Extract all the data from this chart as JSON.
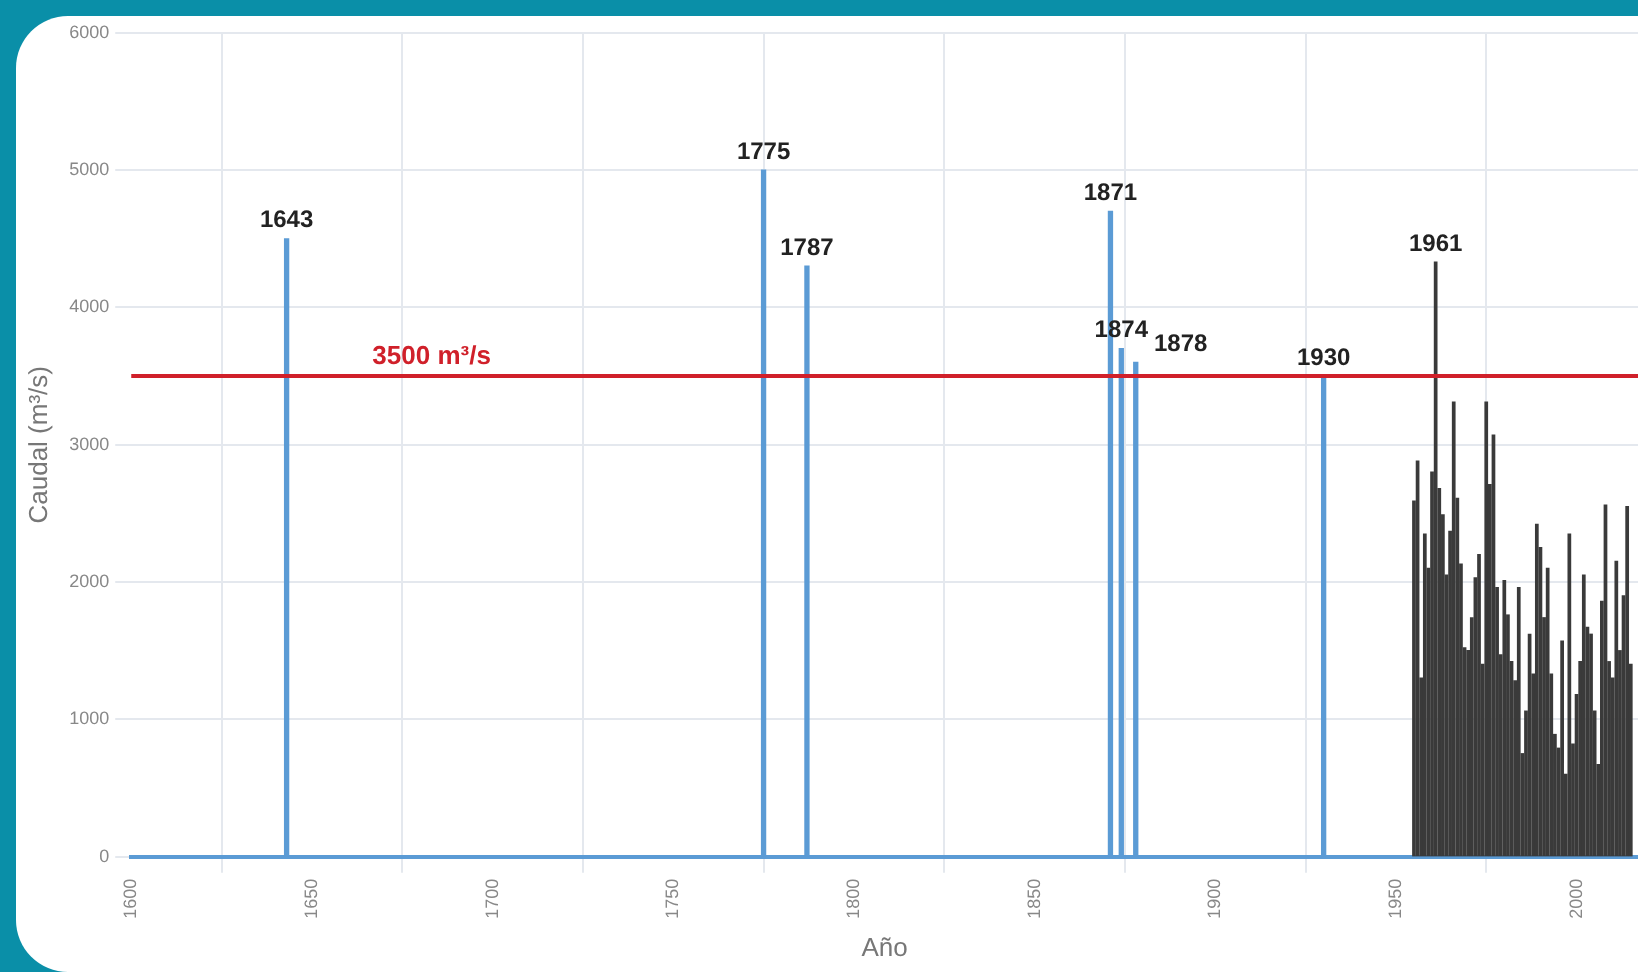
{
  "chart_data": {
    "type": "bar",
    "xlabel": "Año",
    "ylabel": "Caudal (m³/s)",
    "xlim": [
      1600,
      2017
    ],
    "xticks": [
      1600,
      1650,
      1700,
      1750,
      1800,
      1850,
      1900,
      1950,
      2000
    ],
    "ylim": [
      0,
      6000
    ],
    "yticks": [
      0,
      1000,
      2000,
      3000,
      4000,
      5000,
      6000
    ],
    "grid": true,
    "legend": false,
    "series": [
      {
        "color": "#5b9bd5",
        "x": [
          1643,
          1775,
          1787,
          1871,
          1874,
          1878,
          1930
        ],
        "values": [
          4500,
          5000,
          4300,
          4700,
          3700,
          3600,
          3500
        ]
      },
      {
        "color": "#3a3a3a",
        "x": [
          1955,
          1956,
          1957,
          1958,
          1959,
          1960,
          1961,
          1962,
          1963,
          1964,
          1965,
          1966,
          1967,
          1968,
          1969,
          1970,
          1971,
          1972,
          1973,
          1974,
          1975,
          1976,
          1977,
          1978,
          1979,
          1980,
          1981,
          1982,
          1983,
          1984,
          1985,
          1986,
          1987,
          1988,
          1989,
          1990,
          1991,
          1992,
          1993,
          1994,
          1995,
          1996,
          1997,
          1998,
          1999,
          2000,
          2001,
          2002,
          2003,
          2004,
          2005,
          2006,
          2007,
          2008,
          2009,
          2010,
          2011,
          2012,
          2013,
          2014,
          2015
        ],
        "values": [
          2590,
          2880,
          1300,
          2350,
          2100,
          2800,
          4330,
          2680,
          2490,
          2050,
          2370,
          3310,
          2610,
          2130,
          1520,
          1500,
          1740,
          2030,
          2200,
          1400,
          3310,
          2710,
          3070,
          1960,
          1470,
          2010,
          1760,
          1420,
          1280,
          1960,
          750,
          1060,
          1620,
          1330,
          2420,
          2250,
          1740,
          2100,
          1330,
          890,
          790,
          1570,
          600,
          2350,
          820,
          1180,
          1420,
          2050,
          1670,
          1620,
          1060,
          670,
          1860,
          2560,
          1420,
          1300,
          2150,
          1500,
          1900,
          2550,
          1400
        ]
      }
    ],
    "annotations": [
      {
        "text": "1643",
        "x": 1643,
        "y": 4500
      },
      {
        "text": "1775",
        "x": 1775,
        "y": 5000
      },
      {
        "text": "1787",
        "x": 1787,
        "y": 4300
      },
      {
        "text": "1871",
        "x": 1871,
        "y": 4700
      },
      {
        "text": "1874",
        "x": 1874,
        "y": 3700
      },
      {
        "text": "1878",
        "x": 1878,
        "y": 3600
      },
      {
        "text": "1930",
        "x": 1930,
        "y": 3500
      },
      {
        "text": "1961",
        "x": 1961,
        "y": 4330
      }
    ],
    "ref_lines": [
      {
        "axis": "y",
        "value": 3500,
        "label": "3500 m³/s",
        "color": "#d0202a"
      }
    ]
  }
}
